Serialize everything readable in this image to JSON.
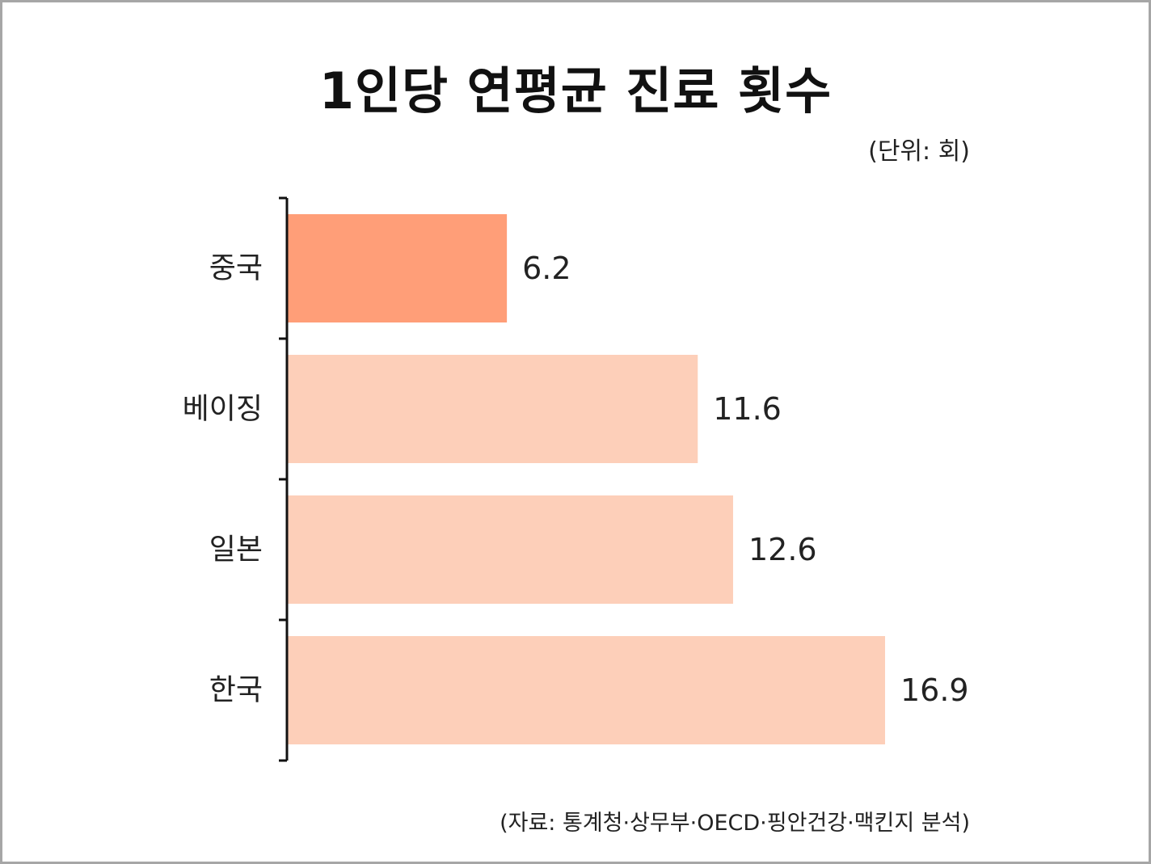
{
  "title": "1인당 연평균 진료 횟수",
  "unit": "(단위: 회)",
  "source": "(자료: 통계청·상무부·OECD·핑안건강·맥킨지 분석)",
  "colors": {
    "highlight": "#ff9e78",
    "normal": "#fdcfb9",
    "axis": "#111111"
  },
  "chart_data": {
    "type": "bar",
    "orientation": "horizontal",
    "categories": [
      "중국",
      "베이징",
      "일본",
      "한국"
    ],
    "values": [
      6.2,
      11.6,
      12.6,
      16.9
    ],
    "value_labels": [
      "6.2",
      "11.6",
      "12.6",
      "16.9"
    ],
    "highlight": "중국",
    "title": "1인당 연평균 진료 횟수",
    "xlabel": "",
    "ylabel": "",
    "xlim": [
      0,
      16.9
    ],
    "grid": false
  }
}
